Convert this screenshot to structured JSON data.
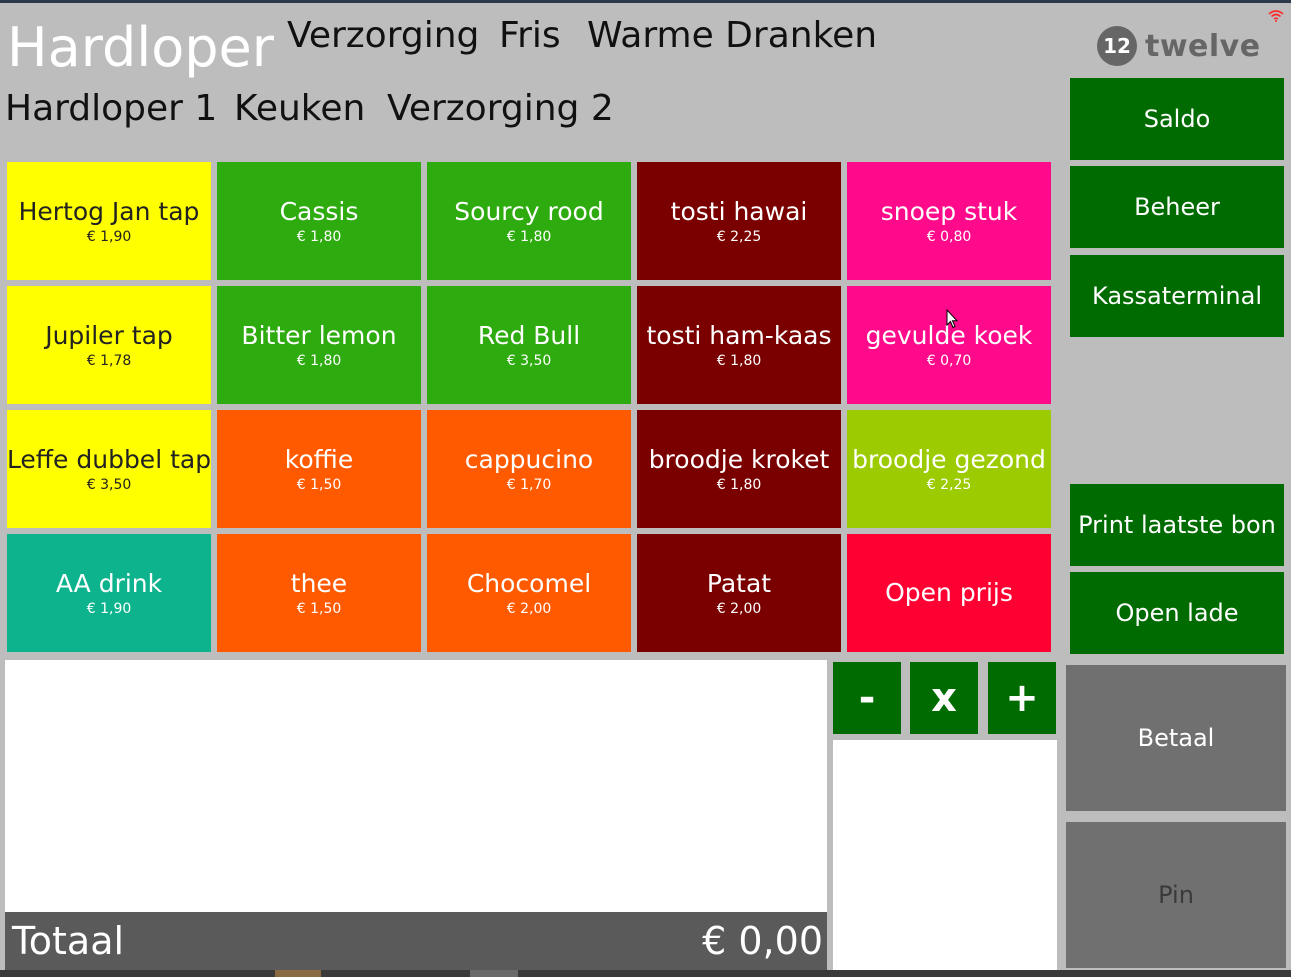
{
  "header": {
    "title": "Hardloper",
    "categories_row1": [
      "Verzorging",
      "Fris",
      "Warme Dranken"
    ],
    "categories_row2": [
      "Hardloper 1",
      "Keuken",
      "Verzorging 2"
    ]
  },
  "logo": {
    "badge": "12",
    "word": "twelve"
  },
  "colors": {
    "yellow": "#ffff00",
    "green": "#2eab0f",
    "maroon": "#7a0000",
    "pink": "#ff0a8a",
    "orange": "#ff5a00",
    "lime": "#9bcb00",
    "teal": "#0db38d",
    "red": "#ff0032",
    "dark_green": "#006b00",
    "grey_button": "#707070"
  },
  "products": [
    {
      "name": "Hertog Jan tap",
      "price": "€ 1,90",
      "color": "yellow"
    },
    {
      "name": "Cassis",
      "price": "€ 1,80",
      "color": "green"
    },
    {
      "name": "Sourcy rood",
      "price": "€ 1,80",
      "color": "green"
    },
    {
      "name": "tosti hawai",
      "price": "€ 2,25",
      "color": "maroon"
    },
    {
      "name": "snoep stuk",
      "price": "€ 0,80",
      "color": "pink"
    },
    {
      "name": "Jupiler tap",
      "price": "€ 1,78",
      "color": "yellow"
    },
    {
      "name": "Bitter lemon",
      "price": "€ 1,80",
      "color": "green"
    },
    {
      "name": "Red Bull",
      "price": "€ 3,50",
      "color": "green"
    },
    {
      "name": "tosti ham-kaas",
      "price": "€ 1,80",
      "color": "maroon"
    },
    {
      "name": "gevulde koek",
      "price": "€ 0,70",
      "color": "pink"
    },
    {
      "name": "Leffe dubbel tap",
      "price": "€ 3,50",
      "color": "yellow"
    },
    {
      "name": "koffie",
      "price": "€ 1,50",
      "color": "orange"
    },
    {
      "name": "cappucino",
      "price": "€ 1,70",
      "color": "orange"
    },
    {
      "name": "broodje kroket",
      "price": "€ 1,80",
      "color": "maroon"
    },
    {
      "name": "broodje gezond",
      "price": "€ 2,25",
      "color": "lime"
    },
    {
      "name": "AA drink",
      "price": "€ 1,90",
      "color": "teal"
    },
    {
      "name": "thee",
      "price": "€ 1,50",
      "color": "orange"
    },
    {
      "name": "Chocomel",
      "price": "€ 2,00",
      "color": "orange"
    },
    {
      "name": "Patat",
      "price": "€ 2,00",
      "color": "maroon"
    },
    {
      "name": "Open prijs",
      "price": "",
      "color": "red"
    }
  ],
  "sidebar": {
    "saldo": "Saldo",
    "beheer": "Beheer",
    "kassaterminal": "Kassaterminal",
    "print_laatste_bon": "Print laatste bon",
    "open_lade": "Open lade",
    "betaal": "Betaal",
    "pin": "Pin"
  },
  "quantity": {
    "minus": "-",
    "times": "x",
    "plus": "+"
  },
  "total": {
    "label": "Totaal",
    "value": "€ 0,00"
  },
  "icons": [
    "twelve-logo-icon",
    "wifi-icon",
    "mouse-cursor-icon"
  ]
}
